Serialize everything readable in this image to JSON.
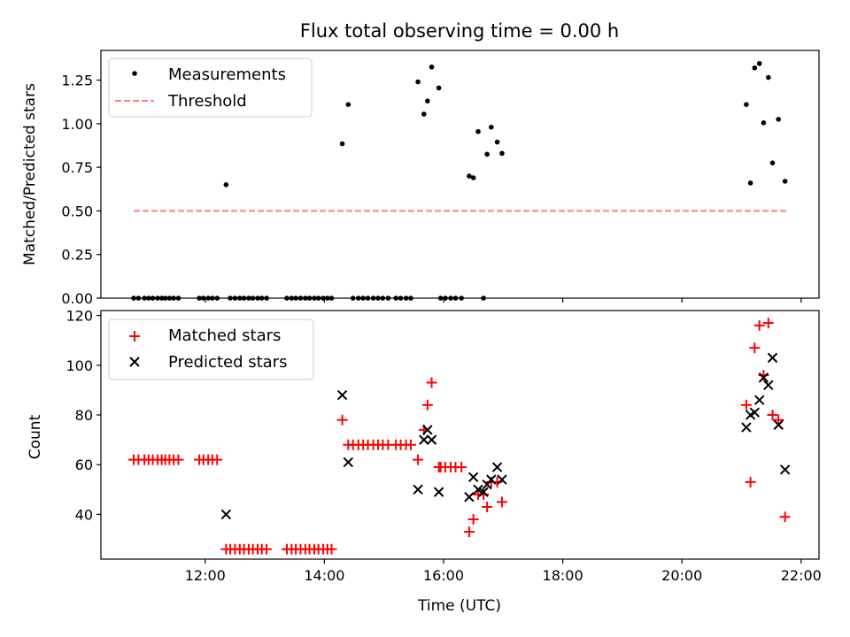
{
  "chart_data": [
    {
      "type": "scatter",
      "title": "Flux total observing time = 0.00 h",
      "xlabel": "",
      "ylabel": "Matched/Predicted stars",
      "xlim": [
        10.25,
        22.3
      ],
      "ylim": [
        0.0,
        1.42
      ],
      "y_ticks": [
        0.0,
        0.25,
        0.5,
        0.75,
        1.0,
        1.25
      ],
      "y_tick_labels": [
        "0.00",
        "0.25",
        "0.50",
        "0.75",
        "1.00",
        "1.25"
      ],
      "x_ticks": [
        12,
        14,
        16,
        18,
        20,
        22
      ],
      "x_tick_labels_visible": false,
      "legend_placement": "top-left",
      "series": [
        {
          "name": "Measurements",
          "color": "#000000",
          "marker": "dot",
          "points": [
            [
              10.8,
              0
            ],
            [
              10.88,
              0
            ],
            [
              10.98,
              0
            ],
            [
              11.05,
              0
            ],
            [
              11.12,
              0
            ],
            [
              11.2,
              0
            ],
            [
              11.27,
              0
            ],
            [
              11.33,
              0
            ],
            [
              11.4,
              0
            ],
            [
              11.47,
              0
            ],
            [
              11.55,
              0
            ],
            [
              11.9,
              0
            ],
            [
              11.97,
              0
            ],
            [
              12.05,
              0
            ],
            [
              12.12,
              0
            ],
            [
              12.2,
              0
            ],
            [
              12.35,
              0.65
            ],
            [
              12.42,
              0
            ],
            [
              12.5,
              0
            ],
            [
              12.58,
              0
            ],
            [
              12.65,
              0
            ],
            [
              12.73,
              0
            ],
            [
              12.8,
              0
            ],
            [
              12.88,
              0
            ],
            [
              12.95,
              0
            ],
            [
              13.03,
              0
            ],
            [
              13.37,
              0
            ],
            [
              13.45,
              0
            ],
            [
              13.52,
              0
            ],
            [
              13.6,
              0
            ],
            [
              13.68,
              0
            ],
            [
              13.75,
              0
            ],
            [
              13.83,
              0
            ],
            [
              13.9,
              0
            ],
            [
              13.98,
              0
            ],
            [
              14.05,
              0
            ],
            [
              14.12,
              0
            ],
            [
              14.3,
              0.885
            ],
            [
              14.4,
              1.11
            ],
            [
              14.48,
              0
            ],
            [
              14.57,
              0
            ],
            [
              14.65,
              0
            ],
            [
              14.73,
              0
            ],
            [
              14.82,
              0
            ],
            [
              14.9,
              0
            ],
            [
              14.98,
              0
            ],
            [
              15.07,
              0
            ],
            [
              15.2,
              0
            ],
            [
              15.28,
              0
            ],
            [
              15.37,
              0
            ],
            [
              15.45,
              0
            ],
            [
              15.57,
              1.24
            ],
            [
              15.67,
              1.055
            ],
            [
              15.73,
              1.13
            ],
            [
              15.8,
              1.325
            ],
            [
              15.92,
              1.205
            ],
            [
              15.95,
              0
            ],
            [
              16.03,
              0
            ],
            [
              16.12,
              0
            ],
            [
              16.2,
              0
            ],
            [
              16.3,
              0
            ],
            [
              16.43,
              0.7
            ],
            [
              16.5,
              0.69
            ],
            [
              16.58,
              0.955
            ],
            [
              16.67,
              0
            ],
            [
              16.73,
              0.825
            ],
            [
              16.8,
              0.98
            ],
            [
              16.9,
              0.895
            ],
            [
              16.98,
              0.83
            ],
            [
              21.08,
              1.11
            ],
            [
              21.15,
              0.66
            ],
            [
              21.22,
              1.32
            ],
            [
              21.3,
              1.345
            ],
            [
              21.37,
              1.005
            ],
            [
              21.45,
              1.265
            ],
            [
              21.52,
              0.775
            ],
            [
              21.62,
              1.025
            ],
            [
              21.73,
              0.67
            ]
          ]
        },
        {
          "name": "Threshold",
          "color": "#ff7f7f",
          "style": "dashed",
          "points": [
            [
              10.8,
              0.5
            ],
            [
              21.75,
              0.5
            ]
          ]
        }
      ]
    },
    {
      "type": "scatter",
      "title": "",
      "xlabel": "Time (UTC)",
      "ylabel": "Count",
      "xlim": [
        10.25,
        22.3
      ],
      "ylim": [
        22,
        122
      ],
      "y_ticks": [
        40,
        60,
        80,
        100,
        120
      ],
      "y_tick_labels": [
        "40",
        "60",
        "80",
        "100",
        "120"
      ],
      "x_ticks": [
        12,
        14,
        16,
        18,
        20,
        22
      ],
      "x_tick_labels": [
        "12:00",
        "14:00",
        "16:00",
        "18:00",
        "20:00",
        "22:00"
      ],
      "legend_placement": "top-left",
      "series": [
        {
          "name": "Matched stars",
          "color": "#ff0000",
          "marker": "plus",
          "points": [
            [
              10.8,
              62
            ],
            [
              10.88,
              62
            ],
            [
              10.98,
              62
            ],
            [
              11.05,
              62
            ],
            [
              11.12,
              62
            ],
            [
              11.2,
              62
            ],
            [
              11.27,
              62
            ],
            [
              11.33,
              62
            ],
            [
              11.4,
              62
            ],
            [
              11.47,
              62
            ],
            [
              11.55,
              62
            ],
            [
              11.9,
              62
            ],
            [
              11.97,
              62
            ],
            [
              12.05,
              62
            ],
            [
              12.12,
              62
            ],
            [
              12.2,
              62
            ],
            [
              12.35,
              26
            ],
            [
              12.42,
              26
            ],
            [
              12.5,
              26
            ],
            [
              12.58,
              26
            ],
            [
              12.65,
              26
            ],
            [
              12.73,
              26
            ],
            [
              12.8,
              26
            ],
            [
              12.88,
              26
            ],
            [
              12.95,
              26
            ],
            [
              13.03,
              26
            ],
            [
              13.37,
              26
            ],
            [
              13.45,
              26
            ],
            [
              13.52,
              26
            ],
            [
              13.6,
              26
            ],
            [
              13.68,
              26
            ],
            [
              13.75,
              26
            ],
            [
              13.83,
              26
            ],
            [
              13.9,
              26
            ],
            [
              13.98,
              26
            ],
            [
              14.05,
              26
            ],
            [
              14.12,
              26
            ],
            [
              14.3,
              78
            ],
            [
              14.4,
              68
            ],
            [
              14.48,
              68
            ],
            [
              14.57,
              68
            ],
            [
              14.65,
              68
            ],
            [
              14.73,
              68
            ],
            [
              14.82,
              68
            ],
            [
              14.9,
              68
            ],
            [
              14.98,
              68
            ],
            [
              15.07,
              68
            ],
            [
              15.2,
              68
            ],
            [
              15.28,
              68
            ],
            [
              15.37,
              68
            ],
            [
              15.45,
              68
            ],
            [
              15.57,
              62
            ],
            [
              15.67,
              74
            ],
            [
              15.73,
              84
            ],
            [
              15.8,
              93
            ],
            [
              15.92,
              59
            ],
            [
              15.95,
              59
            ],
            [
              16.03,
              59
            ],
            [
              16.12,
              59
            ],
            [
              16.2,
              59
            ],
            [
              16.3,
              59
            ],
            [
              16.43,
              33
            ],
            [
              16.5,
              38
            ],
            [
              16.58,
              48
            ],
            [
              16.67,
              48
            ],
            [
              16.73,
              43
            ],
            [
              16.8,
              53
            ],
            [
              16.9,
              53
            ],
            [
              16.98,
              45
            ],
            [
              21.08,
              84
            ],
            [
              21.15,
              53
            ],
            [
              21.22,
              107
            ],
            [
              21.3,
              116
            ],
            [
              21.37,
              96
            ],
            [
              21.45,
              117
            ],
            [
              21.52,
              80
            ],
            [
              21.62,
              78
            ],
            [
              21.73,
              39
            ]
          ]
        },
        {
          "name": "Predicted stars",
          "color": "#000000",
          "marker": "x",
          "points": [
            [
              12.35,
              40
            ],
            [
              14.3,
              88
            ],
            [
              14.4,
              61
            ],
            [
              15.57,
              50
            ],
            [
              15.67,
              70
            ],
            [
              15.73,
              74
            ],
            [
              15.8,
              70
            ],
            [
              15.92,
              49
            ],
            [
              16.43,
              47
            ],
            [
              16.5,
              55
            ],
            [
              16.58,
              50
            ],
            [
              16.67,
              49
            ],
            [
              16.73,
              52
            ],
            [
              16.8,
              54
            ],
            [
              16.9,
              59
            ],
            [
              16.98,
              54
            ],
            [
              21.08,
              75
            ],
            [
              21.15,
              80
            ],
            [
              21.22,
              81
            ],
            [
              21.3,
              86
            ],
            [
              21.37,
              95
            ],
            [
              21.45,
              92
            ],
            [
              21.52,
              103
            ],
            [
              21.62,
              76
            ],
            [
              21.73,
              58
            ]
          ]
        }
      ]
    }
  ]
}
